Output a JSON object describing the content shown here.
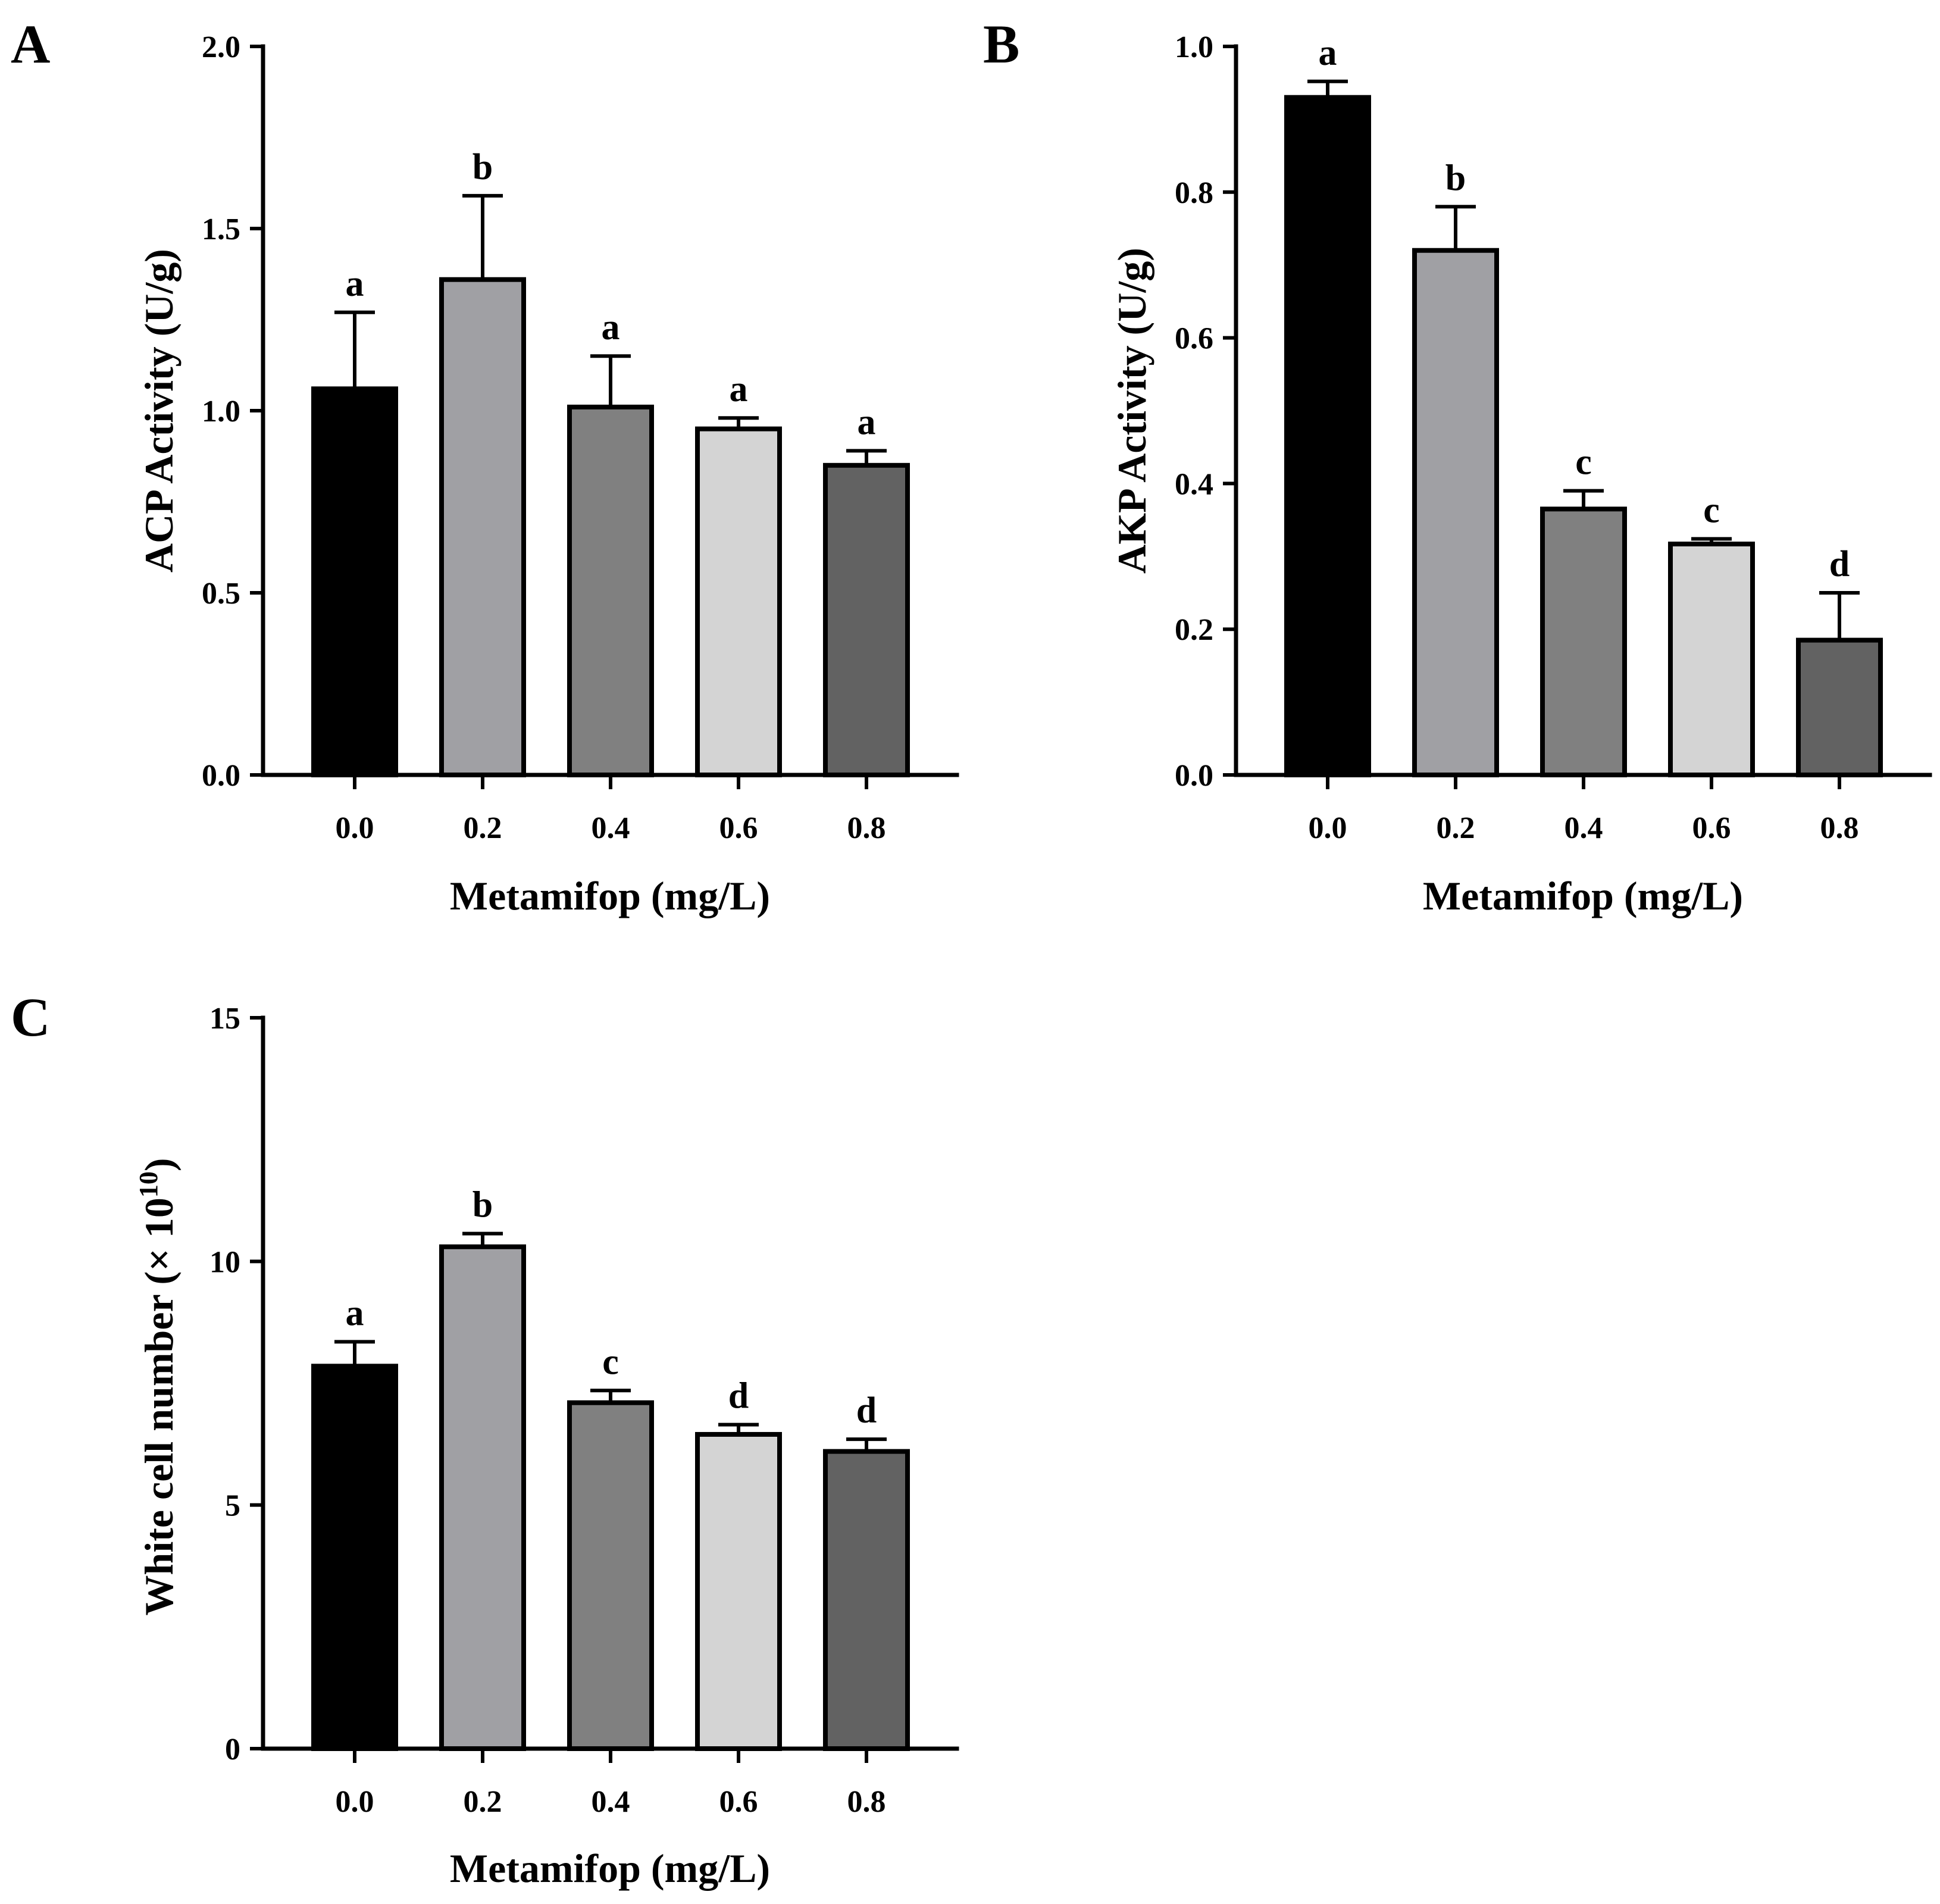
{
  "figure": {
    "panels": [
      "A",
      "B",
      "C"
    ]
  },
  "chart_data": [
    {
      "panel": "A",
      "type": "bar",
      "title": "",
      "xlabel": "Metamifop (mg/L)",
      "ylabel": "ACP Activity (U/g)",
      "ylim": [
        0,
        2.0
      ],
      "yticks": [
        "0.0",
        "0.5",
        "1.0",
        "1.5",
        "2.0"
      ],
      "ytick_values": [
        0,
        0.5,
        1.0,
        1.5,
        2.0
      ],
      "categories": [
        "0.0",
        "0.2",
        "0.4",
        "0.6",
        "0.8"
      ],
      "values": [
        1.06,
        1.36,
        1.01,
        0.95,
        0.85
      ],
      "errors": [
        0.21,
        0.23,
        0.14,
        0.03,
        0.04
      ],
      "significance": [
        "a",
        "b",
        "a",
        "a",
        "a"
      ],
      "bar_colors": [
        "#000000",
        "#a0a0a4",
        "#808080",
        "#d4d4d4",
        "#626262"
      ]
    },
    {
      "panel": "B",
      "type": "bar",
      "title": "",
      "xlabel": "Metamifop (mg/L)",
      "ylabel": "AKP Activity (U/g)",
      "ylim": [
        0,
        1.0
      ],
      "yticks": [
        "0.0",
        "0.2",
        "0.4",
        "0.6",
        "0.8",
        "1.0"
      ],
      "ytick_values": [
        0,
        0.2,
        0.4,
        0.6,
        0.8,
        1.0
      ],
      "categories": [
        "0.0",
        "0.2",
        "0.4",
        "0.6",
        "0.8"
      ],
      "values": [
        0.93,
        0.72,
        0.365,
        0.317,
        0.185
      ],
      "errors": [
        0.022,
        0.06,
        0.025,
        0.007,
        0.065
      ],
      "significance": [
        "a",
        "b",
        "c",
        "c",
        "d"
      ],
      "bar_colors": [
        "#000000",
        "#a0a0a4",
        "#808080",
        "#d4d4d4",
        "#626262"
      ]
    },
    {
      "panel": "C",
      "type": "bar",
      "title": "",
      "xlabel": "Metamifop (mg/L)",
      "ylabel": "White cell number (× 10",
      "ylabel_superscript": "10",
      "ylabel_suffix": ")",
      "ylim": [
        0,
        15
      ],
      "yticks": [
        "0",
        "5",
        "10",
        "15"
      ],
      "ytick_values": [
        0,
        5,
        10,
        15
      ],
      "categories": [
        "0.0",
        "0.2",
        "0.4",
        "0.6",
        "0.8"
      ],
      "values": [
        7.85,
        10.3,
        7.1,
        6.45,
        6.1
      ],
      "errors": [
        0.5,
        0.27,
        0.25,
        0.2,
        0.25
      ],
      "significance": [
        "a",
        "b",
        "c",
        "d",
        "d"
      ],
      "bar_colors": [
        "#000000",
        "#a0a0a4",
        "#808080",
        "#d4d4d4",
        "#626262"
      ]
    }
  ]
}
